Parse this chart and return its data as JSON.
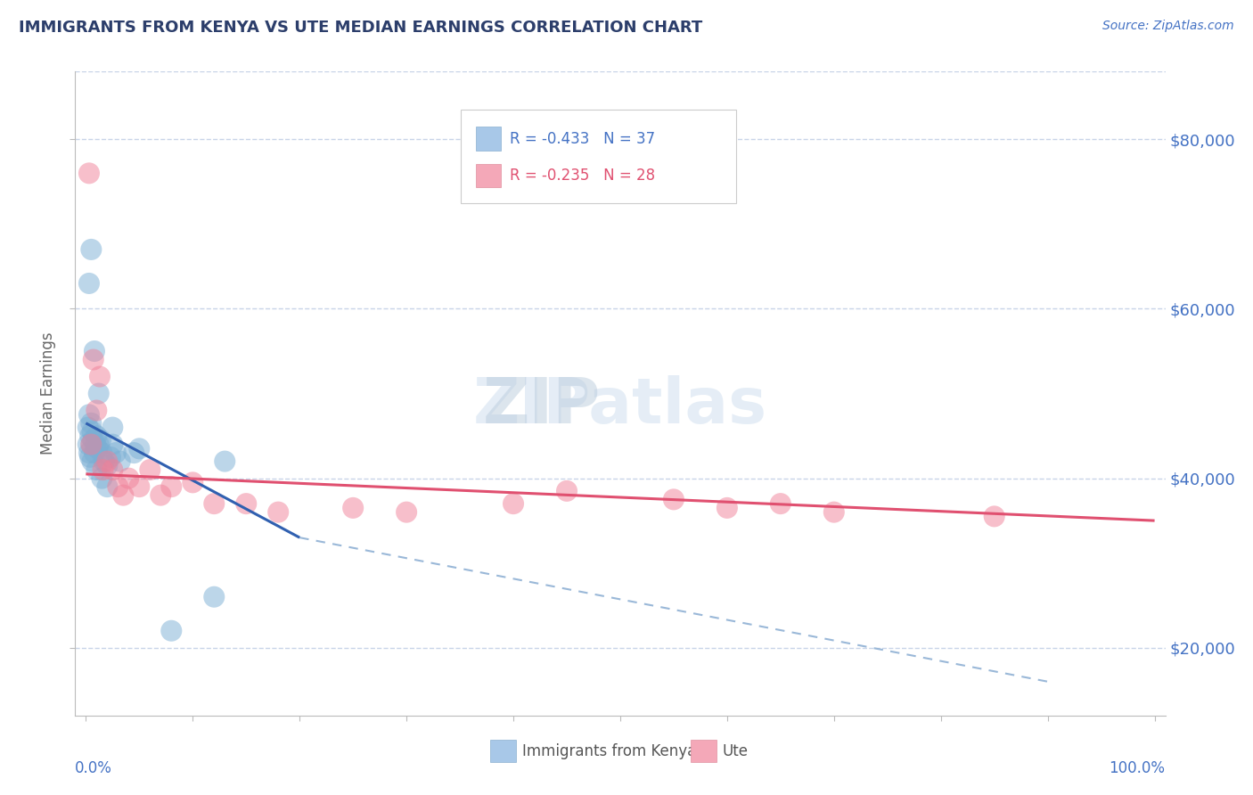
{
  "title": "IMMIGRANTS FROM KENYA VS UTE MEDIAN EARNINGS CORRELATION CHART",
  "source": "Source: ZipAtlas.com",
  "ylabel": "Median Earnings",
  "xlim": [
    -1.0,
    101.0
  ],
  "ylim": [
    12000,
    88000
  ],
  "yticks": [
    20000,
    40000,
    60000,
    80000
  ],
  "ytick_labels": [
    "$20,000",
    "$40,000",
    "$60,000",
    "$80,000"
  ],
  "legend_entries": [
    {
      "label": "R = -0.433   N = 37",
      "color": "#a8c8e8"
    },
    {
      "label": "R = -0.235   N = 28",
      "color": "#f4a8b8"
    }
  ],
  "legend_bottom": [
    "Immigrants from Kenya",
    "Ute"
  ],
  "kenya_color": "#7bafd4",
  "ute_color": "#f08098",
  "background_color": "#ffffff",
  "grid_color": "#c8d4e8",
  "title_color": "#2c3e6b",
  "kenya_line_color": "#3060b0",
  "ute_line_color": "#e05070",
  "dashed_line_color": "#9ab8d8",
  "kenya_points": [
    [
      0.2,
      46000
    ],
    [
      0.3,
      47500
    ],
    [
      0.4,
      45000
    ],
    [
      0.5,
      44000
    ],
    [
      0.5,
      46500
    ],
    [
      0.6,
      45500
    ],
    [
      0.7,
      44500
    ],
    [
      0.8,
      43000
    ],
    [
      0.9,
      44000
    ],
    [
      1.0,
      45000
    ],
    [
      1.1,
      43500
    ],
    [
      1.2,
      44000
    ],
    [
      1.4,
      44500
    ],
    [
      1.5,
      43000
    ],
    [
      1.7,
      42000
    ],
    [
      2.0,
      41500
    ],
    [
      2.3,
      42500
    ],
    [
      2.5,
      44000
    ],
    [
      2.8,
      43000
    ],
    [
      3.2,
      42000
    ],
    [
      0.3,
      63000
    ],
    [
      0.5,
      67000
    ],
    [
      0.8,
      55000
    ],
    [
      1.2,
      50000
    ],
    [
      2.5,
      46000
    ],
    [
      4.5,
      43000
    ],
    [
      5.0,
      43500
    ],
    [
      8.0,
      22000
    ],
    [
      12.0,
      26000
    ],
    [
      13.0,
      42000
    ],
    [
      0.2,
      44000
    ],
    [
      0.3,
      43000
    ],
    [
      0.4,
      42500
    ],
    [
      0.6,
      42000
    ],
    [
      1.0,
      41000
    ],
    [
      1.5,
      40000
    ],
    [
      2.0,
      39000
    ]
  ],
  "ute_points": [
    [
      0.3,
      76000
    ],
    [
      0.5,
      44000
    ],
    [
      0.7,
      54000
    ],
    [
      1.0,
      48000
    ],
    [
      1.3,
      52000
    ],
    [
      1.6,
      41000
    ],
    [
      2.0,
      42000
    ],
    [
      2.5,
      41000
    ],
    [
      3.0,
      39000
    ],
    [
      3.5,
      38000
    ],
    [
      4.0,
      40000
    ],
    [
      5.0,
      39000
    ],
    [
      6.0,
      41000
    ],
    [
      7.0,
      38000
    ],
    [
      8.0,
      39000
    ],
    [
      10.0,
      39500
    ],
    [
      12.0,
      37000
    ],
    [
      15.0,
      37000
    ],
    [
      18.0,
      36000
    ],
    [
      25.0,
      36500
    ],
    [
      30.0,
      36000
    ],
    [
      40.0,
      37000
    ],
    [
      45.0,
      38500
    ],
    [
      55.0,
      37500
    ],
    [
      60.0,
      36500
    ],
    [
      65.0,
      37000
    ],
    [
      70.0,
      36000
    ],
    [
      85.0,
      35500
    ]
  ],
  "kenya_line_x0": 0.0,
  "kenya_line_y0": 46500,
  "kenya_line_x1": 20.0,
  "kenya_line_y1": 33000,
  "kenya_dash_x0": 20.0,
  "kenya_dash_y0": 33000,
  "kenya_dash_x1": 90.0,
  "kenya_dash_y1": 16000,
  "ute_line_x0": 0.0,
  "ute_line_y0": 40500,
  "ute_line_x1": 100.0,
  "ute_line_y1": 35000
}
